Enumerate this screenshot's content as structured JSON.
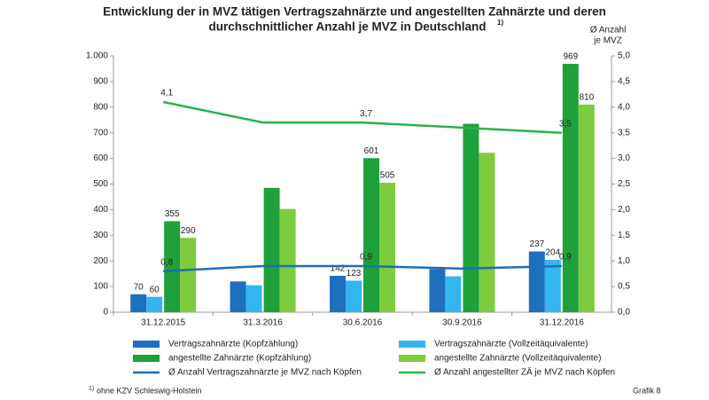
{
  "chart_data": {
    "type": "bar",
    "title": [
      "Entwicklung der in MVZ tätigen Vertragszahnärzte und angestellten Zahnärzte und deren",
      "durchschnittlicher Anzahl je MVZ in Deutschland"
    ],
    "title_note": "1)",
    "y2_label": [
      "Ø Anzahl",
      "je MVZ"
    ],
    "categories": [
      "31.12.2015",
      "31.3.2016",
      "30.6.2016",
      "30.9.2016",
      "31.12.2016"
    ],
    "series": [
      {
        "name": "Vertragszahnärzte (Kopfzählung)",
        "color": "#1f6fbf",
        "values": [
          70,
          120,
          142,
          168,
          237
        ],
        "value_labels": [
          "70",
          null,
          "142",
          null,
          "237"
        ]
      },
      {
        "name": "Vertragszahnärzte (Vollzeitäquivalente)",
        "color": "#33b5f0",
        "values": [
          60,
          105,
          123,
          140,
          204
        ],
        "value_labels": [
          "60",
          null,
          "123",
          null,
          "204"
        ]
      },
      {
        "name": "angestellte Zahnärzte (Kopfzählung)",
        "color": "#1fa03a",
        "values": [
          355,
          485,
          601,
          735,
          969
        ],
        "value_labels": [
          "355",
          null,
          "601",
          null,
          "969"
        ]
      },
      {
        "name": "angestellte Zahnärzte (Vollzeitäquivalente)",
        "color": "#7dcc3f",
        "values": [
          290,
          403,
          505,
          622,
          810
        ],
        "value_labels": [
          "290",
          null,
          "505",
          null,
          "810"
        ]
      },
      {
        "name": "Ø Anzahl Vertragszahnärzte je MVZ nach Köpfen",
        "type": "line",
        "axis": "y2",
        "color": "#1c6fb8",
        "values": [
          0.8,
          0.9,
          0.9,
          0.85,
          0.9
        ],
        "value_labels": [
          "0,8",
          null,
          "0,9",
          null,
          "0,9"
        ]
      },
      {
        "name": "Ø Anzahl angestellter ZÄ je MVZ nach Köpfen",
        "type": "line",
        "axis": "y2",
        "color": "#2db24a",
        "values": [
          4.1,
          3.7,
          3.7,
          3.6,
          3.5
        ],
        "value_labels": [
          "4,1",
          null,
          "3,7",
          null,
          "3,5"
        ]
      }
    ],
    "ylim": [
      0,
      1000
    ],
    "yticks": [
      0,
      100,
      200,
      300,
      400,
      500,
      600,
      700,
      800,
      900,
      {
        "value": 1000,
        "label": "1.000"
      }
    ],
    "y2lim": [
      0,
      5
    ],
    "y2ticks": [
      {
        "value": 0,
        "label": "0,0"
      },
      {
        "value": 0.5,
        "label": "0,5"
      },
      {
        "value": 1,
        "label": "1,0"
      },
      {
        "value": 1.5,
        "label": "1,5"
      },
      {
        "value": 2,
        "label": "2,0"
      },
      {
        "value": 2.5,
        "label": "2,5"
      },
      {
        "value": 3,
        "label": "3,0"
      },
      {
        "value": 3.5,
        "label": "3,5"
      },
      {
        "value": 4,
        "label": "4,0"
      },
      {
        "value": 4.5,
        "label": "4,5"
      },
      {
        "value": 5,
        "label": "5,0"
      }
    ],
    "grid": false,
    "footnote_mark": "1)",
    "footnote": "ohne KZV Schleswig-Holstein",
    "caption": "Grafik 8"
  }
}
